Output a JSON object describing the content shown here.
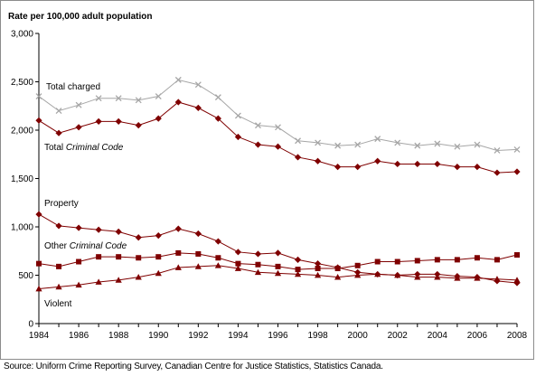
{
  "chart_data": {
    "type": "line",
    "title": "",
    "ylabel": "Rate per 100,000 adult population",
    "xlabel": "",
    "x": [
      1984,
      1985,
      1986,
      1987,
      1988,
      1989,
      1990,
      1991,
      1992,
      1993,
      1994,
      1995,
      1996,
      1997,
      1998,
      1999,
      2000,
      2001,
      2002,
      2003,
      2004,
      2005,
      2006,
      2007,
      2008
    ],
    "x_tick_labels": [
      "1984",
      "1986",
      "1988",
      "1990",
      "1992",
      "1994",
      "1996",
      "1998",
      "2000",
      "2002",
      "2004",
      "2006",
      "2008"
    ],
    "y_tick_labels": [
      "0",
      "500",
      "1,000",
      "1,500",
      "2,000",
      "2,500",
      "3,000"
    ],
    "ylim": [
      0,
      3000
    ],
    "grid": false,
    "series": [
      {
        "name": "Total charged",
        "name_parts": [
          "Total charged"
        ],
        "marker": "x",
        "color": "#a6a6a6",
        "values": [
          2350,
          2200,
          2260,
          2330,
          2330,
          2310,
          2350,
          2520,
          2470,
          2340,
          2150,
          2050,
          2030,
          1890,
          1870,
          1840,
          1850,
          1910,
          1870,
          1840,
          1860,
          1830,
          1850,
          1790,
          1800
        ]
      },
      {
        "name": "Total Criminal Code",
        "name_parts": [
          "Total ",
          "Criminal Code"
        ],
        "marker": "diamond",
        "color": "#7f0000",
        "values": [
          2100,
          1970,
          2030,
          2090,
          2090,
          2050,
          2120,
          2290,
          2230,
          2120,
          1930,
          1850,
          1830,
          1720,
          1680,
          1620,
          1620,
          1680,
          1650,
          1650,
          1650,
          1620,
          1620,
          1560,
          1570
        ]
      },
      {
        "name": "Property",
        "name_parts": [
          "Property"
        ],
        "marker": "diamond",
        "color": "#7f0000",
        "values": [
          1130,
          1010,
          990,
          970,
          950,
          890,
          910,
          980,
          930,
          850,
          740,
          720,
          730,
          660,
          620,
          580,
          530,
          510,
          500,
          510,
          510,
          490,
          480,
          440,
          420
        ]
      },
      {
        "name": "Other Criminal Code",
        "name_parts": [
          "Other ",
          "Criminal Code"
        ],
        "marker": "square",
        "color": "#7f0000",
        "values": [
          620,
          590,
          640,
          690,
          690,
          680,
          690,
          730,
          720,
          680,
          620,
          610,
          590,
          560,
          570,
          570,
          600,
          640,
          640,
          650,
          660,
          660,
          680,
          660,
          710
        ]
      },
      {
        "name": "Violent",
        "name_parts": [
          "Violent"
        ],
        "marker": "triangle",
        "color": "#7f0000",
        "values": [
          360,
          380,
          400,
          430,
          450,
          480,
          520,
          580,
          590,
          600,
          570,
          530,
          520,
          510,
          500,
          480,
          500,
          510,
          500,
          480,
          480,
          470,
          470,
          460,
          450
        ]
      }
    ]
  },
  "source_text": "Source: Uniform Crime Reporting Survey, Canadian Centre for Justice Statistics, Statistics Canada."
}
